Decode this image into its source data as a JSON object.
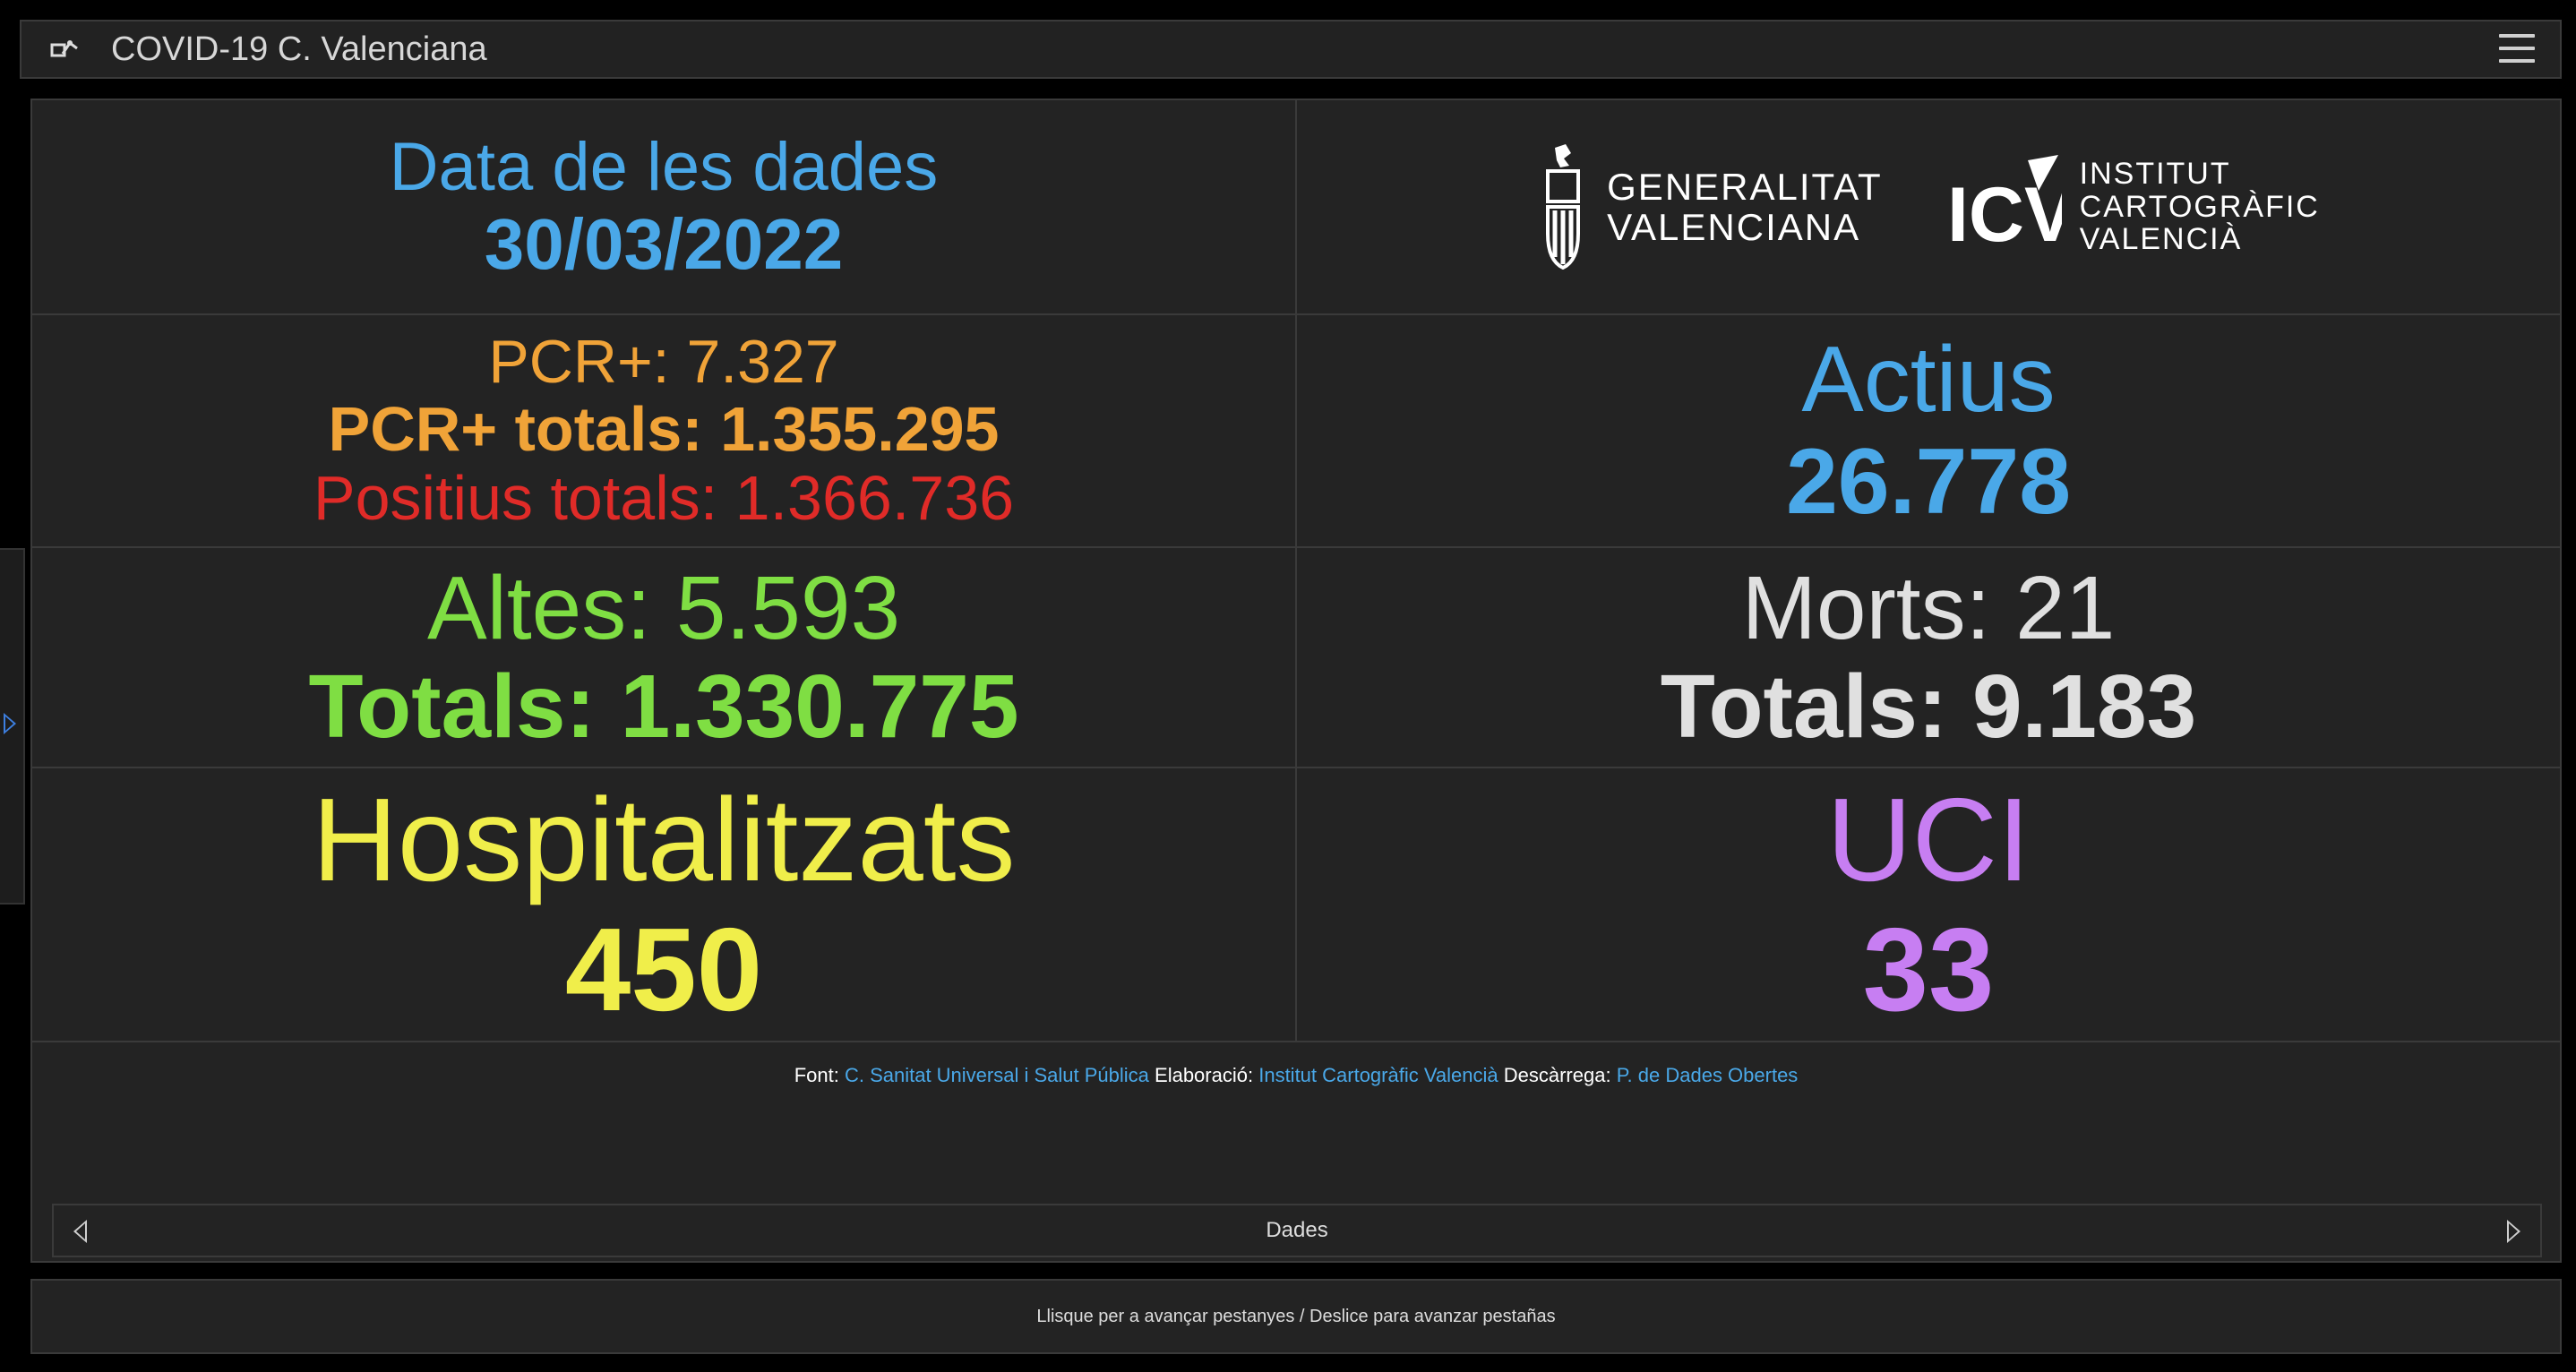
{
  "app": {
    "title": "COVID-19 C. Valenciana"
  },
  "date_block": {
    "label": "Data de les dades",
    "value": "30/03/2022"
  },
  "logos": {
    "generalitat": [
      "GENERALITAT",
      "VALENCIANA"
    ],
    "icv": [
      "INSTITUT",
      "CARTOGRÀFIC",
      "VALENCIÀ"
    ],
    "icv_mark": "ICV"
  },
  "pcr": {
    "daily": "PCR+: 7.327",
    "totals": "PCR+ totals: 1.355.295",
    "positius_totals": "Positius totals: 1.366.736"
  },
  "actius": {
    "label": "Actius",
    "value": "26.778"
  },
  "altes": {
    "daily": "Altes: 5.593",
    "totals": "Totals: 1.330.775"
  },
  "morts": {
    "daily": "Morts: 21",
    "totals": "Totals: 9.183"
  },
  "hospitalitzats": {
    "label": "Hospitalitzats",
    "value": "450"
  },
  "uci": {
    "label": "UCI",
    "value": "33"
  },
  "credits": {
    "font_label": "Font:",
    "font_link": "C. Sanitat Universal i Salut Pública",
    "elaboracio_label": "Elaboració:",
    "elaboracio_link": "Institut Cartogràfic Valencià",
    "descarrega_label": "Descàrrega:",
    "descarrega_link": "P. de Dades Obertes"
  },
  "pager": {
    "label": "Dades"
  },
  "bottom_hint": "Llisque per a avançar pestanyes / Deslice para avanzar pestañas",
  "colors": {
    "blue": "#4aa8e8",
    "orange": "#f0a338",
    "red": "#e02b28",
    "green": "#7fde43",
    "gray": "#e0e0e0",
    "yellow": "#f0ee4a",
    "purple": "#c77ef2"
  },
  "icons": [
    "app-icon",
    "menu-icon",
    "side-expand-icon",
    "chevron-left-icon",
    "chevron-right-icon"
  ]
}
